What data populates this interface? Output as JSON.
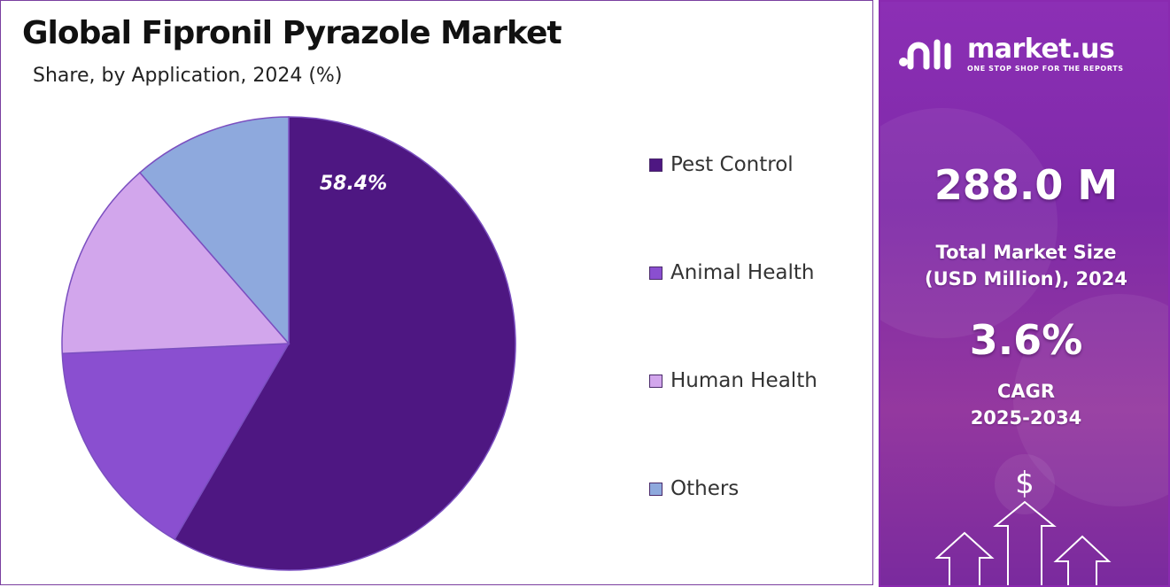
{
  "header": {
    "title": "Global Fipronil Pyrazole Market",
    "subtitle": "Share, by Application, 2024 (%)"
  },
  "chart_data": {
    "type": "pie",
    "title": "Global Fipronil Pyrazole Market",
    "subtitle": "Share, by Application, 2024 (%)",
    "labels": [
      "Pest Control",
      "Animal Health",
      "Human Health",
      "Others"
    ],
    "values": [
      58.4,
      15.9,
      14.3,
      11.4
    ],
    "data_labels": [
      "58.4%",
      "",
      "",
      ""
    ],
    "colors": [
      "#4e1782",
      "#8a4fd0",
      "#d2a6ec",
      "#8ea9dd"
    ],
    "start_angle_deg": 0,
    "direction": "clockwise",
    "legend_position": "right"
  },
  "sidebar": {
    "logo": {
      "name": "market.us",
      "tagline": "ONE STOP SHOP FOR THE REPORTS",
      "icon": "market-us-logo-icon"
    },
    "market_size": {
      "value": "288.0 M",
      "label_line1": "Total Market Size",
      "label_line2": "(USD Million), 2024"
    },
    "cagr": {
      "value": "3.6%",
      "label_line1": "CAGR",
      "label_line2": "2025-2034"
    },
    "decoration": {
      "symbol": "$",
      "icons": [
        "dollar-icon",
        "up-arrow-icon"
      ]
    },
    "colors": {
      "panel": "#8c2fb5",
      "text": "#ffffff"
    }
  }
}
